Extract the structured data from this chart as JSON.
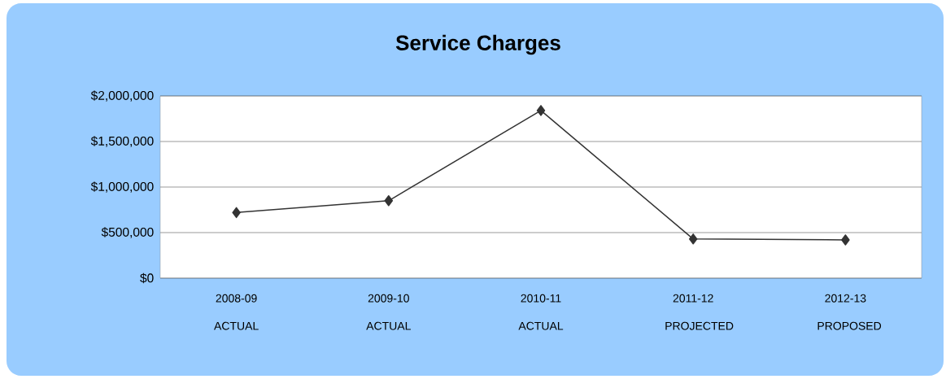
{
  "chart_data": {
    "type": "line",
    "title": "Service Charges",
    "categories": [
      "2008-09 ACTUAL",
      "2009-10 ACTUAL",
      "2010-11 ACTUAL",
      "2011-12 PROJECTED",
      "2012-13 PROPOSED"
    ],
    "series": [
      {
        "color": "#333333",
        "values": [
          720000,
          850000,
          1840000,
          430000,
          420000
        ]
      }
    ],
    "ylim": [
      0,
      2000000
    ],
    "yticks": [
      {
        "value": 0,
        "label": "$0"
      },
      {
        "value": 500000,
        "label": "$500,000"
      },
      {
        "value": 1000000,
        "label": "$1,000,000"
      },
      {
        "value": 1500000,
        "label": "$1,500,000"
      },
      {
        "value": 2000000,
        "label": "$2,000,000"
      }
    ],
    "grid": "y",
    "marker": "diamond",
    "line_style": "solid"
  }
}
